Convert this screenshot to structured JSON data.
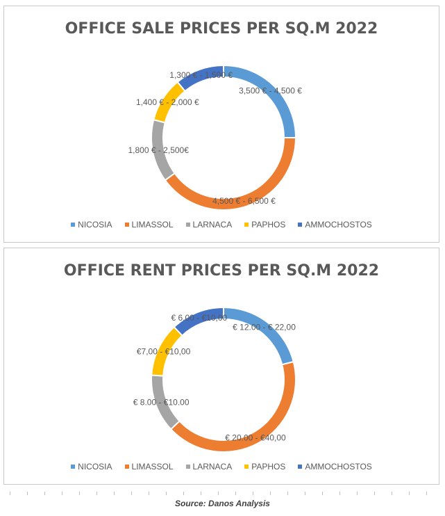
{
  "source": "Source: Danos Analysis",
  "chart_data": [
    {
      "type": "pie",
      "donut": true,
      "title": "OFFICE SALE PRICES PER SQ.M 2022",
      "legend_position": "bottom",
      "categories": [
        "NICOSIA",
        "LIMASSOL",
        "LARNACA",
        "PAPHOS",
        "AMMOCHOSTOS"
      ],
      "values": [
        25,
        40,
        14,
        10,
        11
      ],
      "labels": [
        "3,500 € - 4,500 €",
        "4,500 € - 6,500 €",
        "1,800 € - 2,500€",
        "1,400 € - 2,000 €",
        "1,300 € - 1,500 €"
      ],
      "colors": [
        "#5b9bd5",
        "#ed7d31",
        "#a5a5a5",
        "#ffc000",
        "#4472c4"
      ]
    },
    {
      "type": "pie",
      "donut": true,
      "title": "OFFICE RENT PRICES PER SQ.M 2022",
      "legend_position": "bottom",
      "categories": [
        "NICOSIA",
        "LIMASSOL",
        "LARNACA",
        "PAPHOS",
        "AMMOCHOSTOS"
      ],
      "values": [
        21,
        42,
        13,
        12,
        12
      ],
      "labels": [
        "€ 12.00 - € 22,00",
        "€ 20.00 - €40,00",
        "€ 8.00 - €10.00",
        "€7,00 - €10,00",
        "€ 6.00 - €10,00"
      ],
      "colors": [
        "#5b9bd5",
        "#ed7d31",
        "#a5a5a5",
        "#ffc000",
        "#4472c4"
      ]
    }
  ]
}
